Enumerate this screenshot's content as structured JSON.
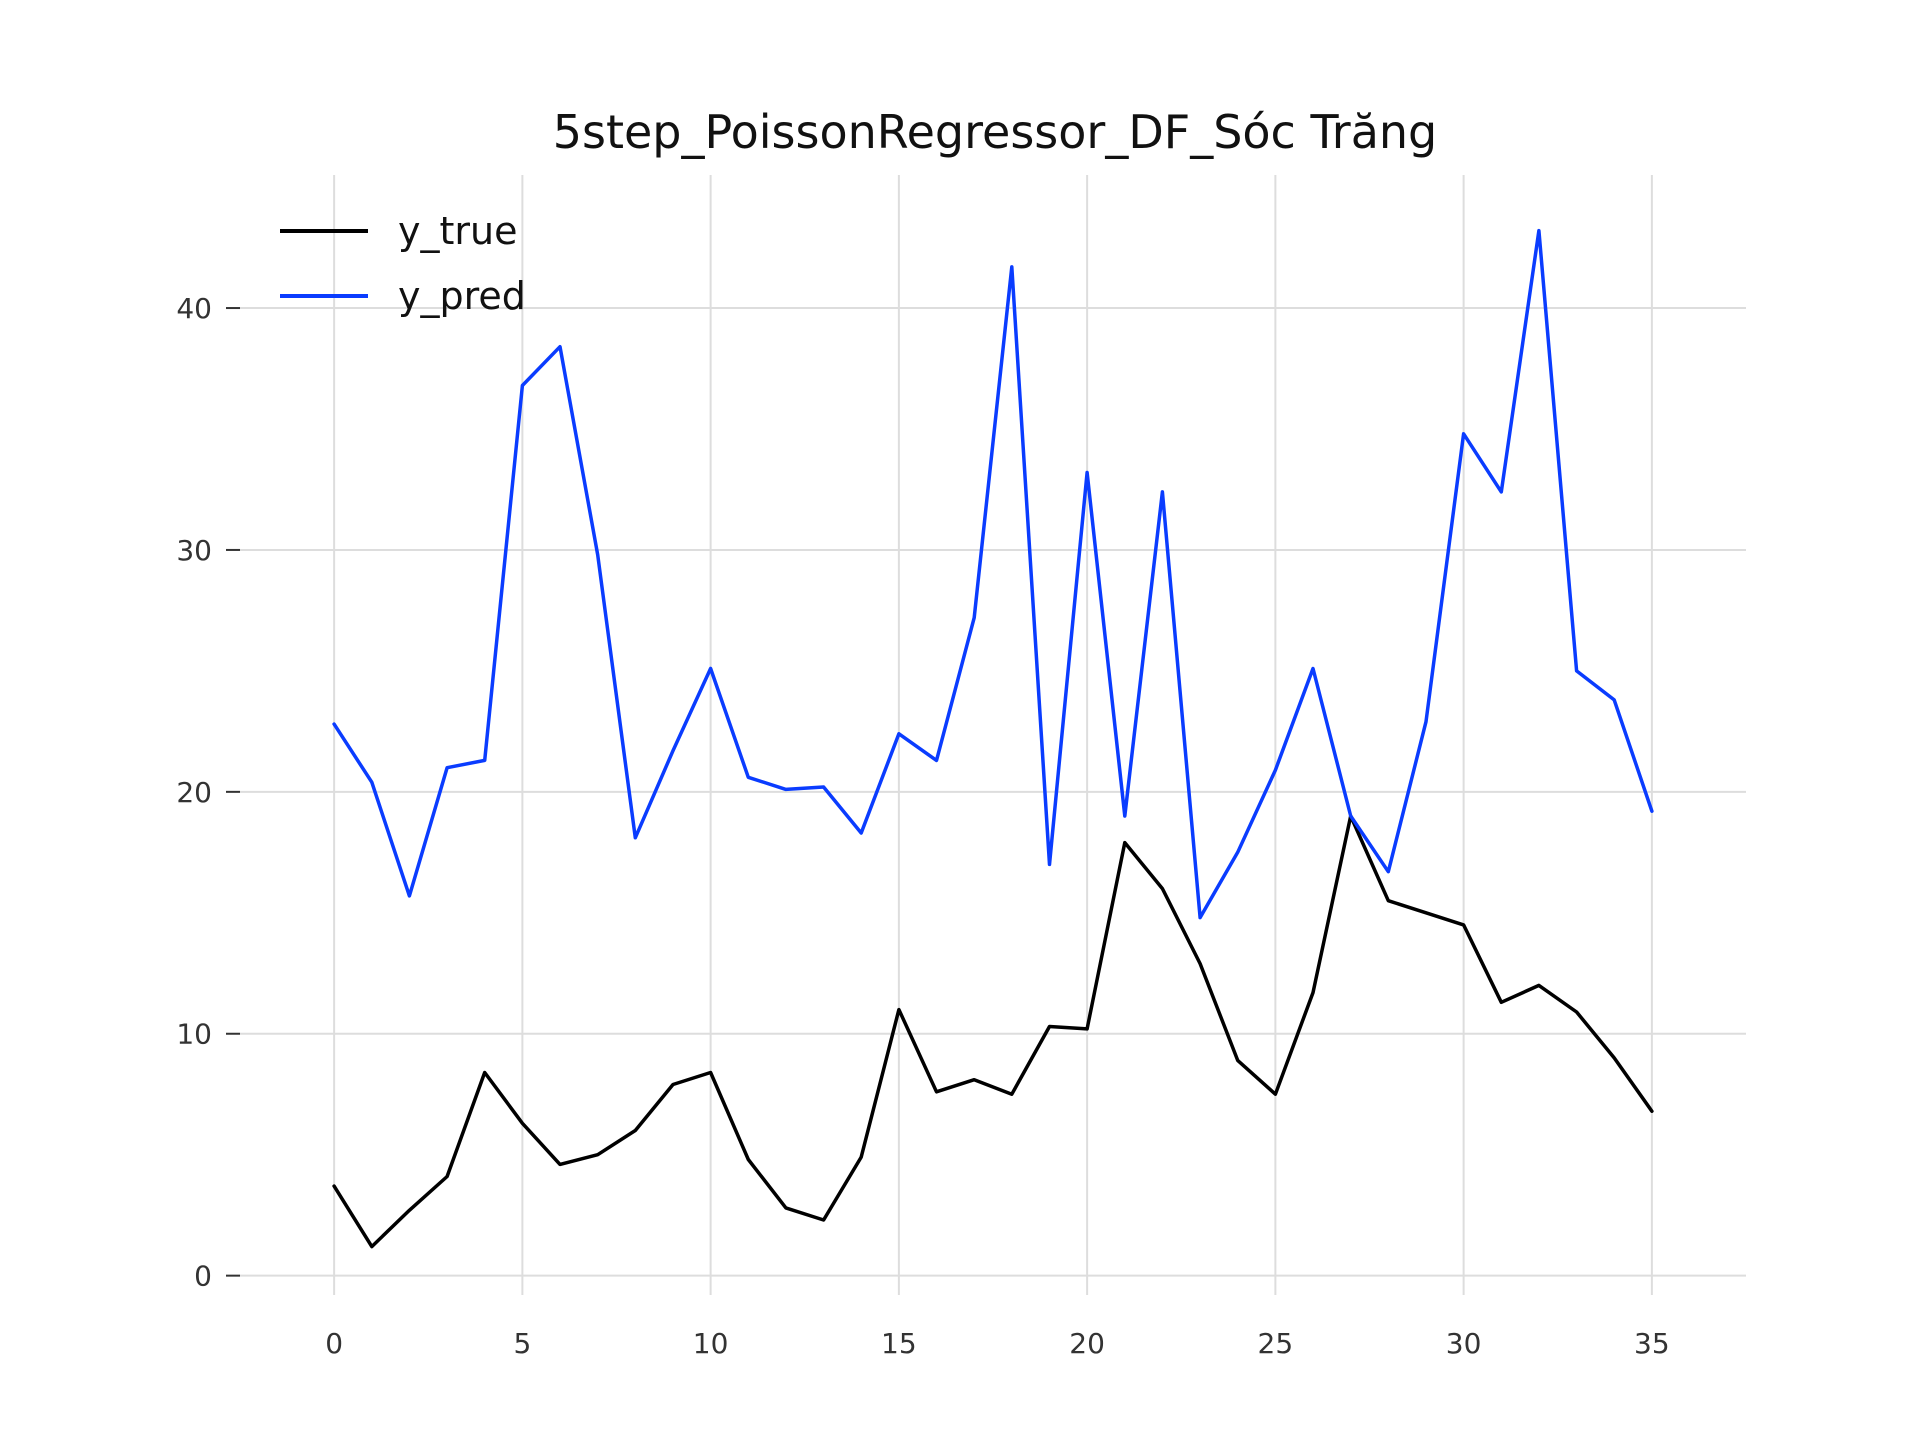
{
  "chart_data": {
    "type": "line",
    "title": "5step_PoissonRegressor_DF_Sóc Trăng",
    "xlabel": "",
    "ylabel": "",
    "xlim": [
      -2.5,
      37.5
    ],
    "ylim": [
      -0.8,
      45.5
    ],
    "grid": true,
    "legend_position": "top-left",
    "x_ticks": [
      0,
      5,
      10,
      15,
      20,
      25,
      30,
      35
    ],
    "y_ticks": [
      0,
      10,
      20,
      30,
      40
    ],
    "x": [
      0,
      1,
      2,
      3,
      4,
      5,
      6,
      7,
      8,
      9,
      10,
      11,
      12,
      13,
      14,
      15,
      16,
      17,
      18,
      19,
      20,
      21,
      22,
      23,
      24,
      25,
      26,
      27,
      28,
      29,
      30,
      31,
      32,
      33,
      34,
      35
    ],
    "series": [
      {
        "name": "y_true",
        "color": "#000000",
        "values": [
          3.7,
          1.2,
          2.7,
          4.1,
          8.4,
          6.3,
          4.6,
          5.0,
          6.0,
          7.9,
          8.4,
          4.8,
          2.8,
          2.3,
          4.9,
          11.0,
          7.6,
          8.1,
          7.5,
          10.3,
          10.2,
          17.9,
          16.0,
          12.9,
          8.9,
          7.5,
          11.7,
          19.0,
          15.5,
          15.0,
          14.5,
          11.3,
          12.0,
          10.9,
          9.0,
          6.8
        ]
      },
      {
        "name": "y_pred",
        "color": "#0a3cff",
        "values": [
          22.8,
          20.4,
          15.7,
          21.0,
          21.3,
          36.8,
          38.4,
          29.8,
          18.1,
          21.7,
          25.1,
          20.6,
          20.1,
          20.2,
          18.3,
          22.4,
          21.3,
          27.2,
          41.7,
          17.0,
          33.2,
          19.0,
          32.4,
          14.8,
          17.5,
          20.9,
          25.1,
          19.0,
          16.7,
          22.9,
          34.8,
          32.4,
          43.2,
          25.0,
          23.8,
          19.2
        ]
      }
    ]
  }
}
